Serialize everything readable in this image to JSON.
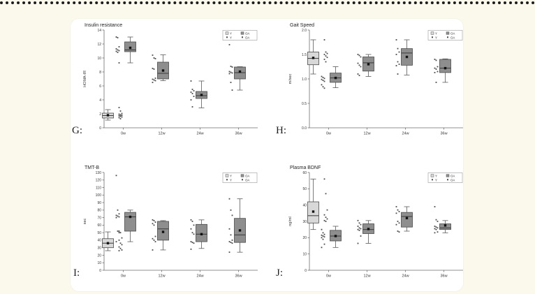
{
  "page": {
    "background": "#fbf8ec",
    "card_background": "#ffffff",
    "top_border": "dotted"
  },
  "colors": {
    "y_box_fill": "#d8d8d8",
    "oa_box_fill": "#8e8e8e",
    "marker": "#4a4a4a",
    "mean": "#111111",
    "axis": "#6e6e6e",
    "text": "#333333"
  },
  "chart_data": [
    {
      "id": "G",
      "label": "G:",
      "type": "boxplot",
      "title": "Insulin resistance",
      "ylabel": "HOMA-IR",
      "ylim": [
        0,
        14
      ],
      "yticks": [
        "0",
        "2",
        "4",
        "6",
        "8",
        "10",
        "12",
        "14"
      ],
      "categories": [
        "0w",
        "12w",
        "24w",
        "36w"
      ],
      "legend": {
        "box_items": [
          "Y",
          "OA"
        ],
        "point_items": [
          "Y",
          "OA"
        ]
      },
      "series": [
        {
          "name": "Y",
          "fill": "#d8d8d8",
          "boxes": [
            {
              "category": "0w",
              "low": 1.1,
              "q1": 1.4,
              "median": 1.75,
              "q3": 2.1,
              "high": 2.6,
              "mean": 1.8,
              "points": [
                2.9,
                2.4,
                2.05,
                1.95,
                1.85,
                1.8,
                1.72,
                1.65,
                1.55,
                1.45,
                1.3
              ]
            }
          ]
        },
        {
          "name": "OA",
          "fill": "#8e8e8e",
          "boxes": [
            {
              "category": "0w",
              "low": 9.3,
              "q1": 10.9,
              "median": 11.15,
              "q3": 12.3,
              "high": 13.0,
              "mean": 11.45,
              "points": [
                13.0,
                12.9,
                11.6,
                11.3,
                11.15,
                11.05,
                10.95,
                10.8,
                9.3
              ]
            },
            {
              "category": "12w",
              "low": 6.75,
              "q1": 7.0,
              "median": 7.8,
              "q3": 9.4,
              "high": 10.45,
              "mean": 8.2,
              "points": [
                10.4,
                10.0,
                9.9,
                8.5,
                8.4,
                7.1,
                6.95,
                6.85,
                6.75,
                6.5
              ]
            },
            {
              "category": "24w",
              "low": 2.85,
              "q1": 4.2,
              "median": 4.6,
              "q3": 5.2,
              "high": 6.7,
              "mean": 4.7,
              "points": [
                6.7,
                5.5,
                5.3,
                5.1,
                4.9,
                4.5,
                4.0,
                3.0
              ]
            },
            {
              "category": "36w",
              "low": 5.4,
              "q1": 7.0,
              "median": 7.9,
              "q3": 8.7,
              "high": 8.75,
              "mean": 8.05,
              "points": [
                11.9,
                8.8,
                8.7,
                8.05,
                7.95,
                7.85,
                7.75,
                6.5,
                5.4
              ]
            }
          ]
        }
      ]
    },
    {
      "id": "H",
      "label": "H:",
      "type": "boxplot",
      "title": "Gait Speed",
      "ylabel": "m/sec",
      "ylim": [
        0,
        2.0
      ],
      "yticks": [
        "0.0",
        "0.5",
        "1.0",
        "1.5",
        "2.0"
      ],
      "categories": [
        "0w",
        "12w",
        "24w",
        "36w"
      ],
      "legend": {
        "box_items": [
          "Y",
          "OA"
        ],
        "point_items": [
          "Y",
          "OA"
        ]
      },
      "series": [
        {
          "name": "Y",
          "fill": "#d8d8d8",
          "boxes": [
            {
              "category": "0w",
              "low": 1.1,
              "q1": 1.29,
              "median": 1.42,
              "q3": 1.55,
              "high": 1.8,
              "mean": 1.43,
              "points": [
                1.8,
                1.55,
                1.52,
                1.5,
                1.47,
                1.44,
                1.4,
                1.35
              ]
            }
          ]
        },
        {
          "name": "OA",
          "fill": "#8e8e8e",
          "boxes": [
            {
              "category": "0w",
              "low": 0.82,
              "q1": 0.93,
              "median": 1.02,
              "q3": 1.12,
              "high": 1.25,
              "mean": 1.02,
              "points": [
                1.05,
                1.03,
                1.01,
                0.99,
                0.97,
                0.95,
                0.88,
                0.84,
                0.81
              ]
            },
            {
              "category": "12w",
              "low": 1.05,
              "q1": 1.16,
              "median": 1.33,
              "q3": 1.45,
              "high": 1.5,
              "mean": 1.3,
              "points": [
                1.5,
                1.48,
                1.45,
                1.32,
                1.28,
                1.25,
                1.1,
                1.07
              ]
            },
            {
              "category": "24w",
              "low": 1.08,
              "q1": 1.28,
              "median": 1.53,
              "q3": 1.62,
              "high": 1.8,
              "mean": 1.45,
              "points": [
                1.8,
                1.62,
                1.55,
                1.5,
                1.35,
                1.3,
                1.27,
                1.1
              ]
            },
            {
              "category": "36w",
              "low": 0.93,
              "q1": 1.13,
              "median": 1.22,
              "q3": 1.4,
              "high": 1.41,
              "mean": 1.22,
              "points": [
                1.4,
                1.38,
                1.25,
                1.22,
                1.2,
                1.15,
                1.13,
                0.93
              ]
            }
          ]
        }
      ]
    },
    {
      "id": "I",
      "label": "I:",
      "type": "boxplot",
      "title": "TMT-B",
      "ylabel": "sec",
      "ylim": [
        0,
        130
      ],
      "yticks": [
        "0",
        "10",
        "20",
        "30",
        "40",
        "50",
        "60",
        "70",
        "80",
        "90",
        "100",
        "110",
        "120",
        "130"
      ],
      "categories": [
        "0w",
        "12w",
        "24w",
        "36w"
      ],
      "legend": {
        "box_items": [
          "Y",
          "OA"
        ],
        "point_items": [
          "Y",
          "OA"
        ]
      },
      "series": [
        {
          "name": "Y",
          "fill": "#d8d8d8",
          "boxes": [
            {
              "category": "0w",
              "low": 26,
              "q1": 30,
              "median": 36,
              "q3": 42,
              "high": 51,
              "mean": 36,
              "points": [
                52,
                50,
                43,
                40,
                36,
                34,
                31,
                29,
                27,
                26
              ]
            }
          ]
        },
        {
          "name": "OA",
          "fill": "#8e8e8e",
          "boxes": [
            {
              "category": "0w",
              "low": 38,
              "q1": 52,
              "median": 71,
              "q3": 77,
              "high": 80,
              "mean": 71,
              "points": [
                126,
                80,
                75,
                73,
                72,
                71,
                70,
                52,
                50,
                38
              ]
            },
            {
              "category": "12w",
              "low": 27,
              "q1": 40,
              "median": 55,
              "q3": 65,
              "high": 66,
              "mean": 51,
              "points": [
                67,
                66,
                64,
                62,
                60,
                45,
                42,
                40,
                38,
                27
              ]
            },
            {
              "category": "24w",
              "low": 29,
              "q1": 38,
              "median": 48,
              "q3": 61,
              "high": 67,
              "mean": 48,
              "points": [
                67,
                65,
                60,
                55,
                50,
                48,
                38,
                37,
                36,
                28
              ]
            },
            {
              "category": "36w",
              "low": 24,
              "q1": 37,
              "median": 47,
              "q3": 69,
              "high": 95,
              "mean": 53,
              "points": [
                95,
                80,
                73,
                55,
                47,
                40,
                38,
                37,
                36,
                24
              ]
            }
          ]
        }
      ]
    },
    {
      "id": "J",
      "label": "J:",
      "type": "boxplot",
      "title": "Plasma BDNF",
      "ylabel": "ng/ml",
      "ylim": [
        0,
        60
      ],
      "yticks": [
        "0",
        "10",
        "20",
        "30",
        "40",
        "50",
        "60"
      ],
      "categories": [
        "0w",
        "12w",
        "24w",
        "36w"
      ],
      "legend": {
        "box_items": [
          "Y",
          "OA"
        ],
        "point_items": [
          "Y",
          "OA"
        ]
      },
      "series": [
        {
          "name": "Y",
          "fill": "#d8d8d8",
          "boxes": [
            {
              "category": "0w",
              "low": 25,
              "q1": 29,
              "median": 33.5,
              "q3": 42,
              "high": 56,
              "mean": 36,
              "points": [
                56,
                47,
                37,
                34,
                32.5,
                31.5,
                30.5,
                30
              ]
            }
          ]
        },
        {
          "name": "OA",
          "fill": "#8e8e8e",
          "boxes": [
            {
              "category": "0w",
              "low": 14,
              "q1": 18,
              "median": 21,
              "q3": 24.5,
              "high": 27,
              "mean": 21,
              "points": [
                25,
                23,
                22,
                21.5,
                21,
                20.5,
                20,
                19,
                16,
                14
              ]
            },
            {
              "category": "12w",
              "low": 16.5,
              "q1": 22.5,
              "median": 25,
              "q3": 28.5,
              "high": 30.5,
              "mean": 25.3,
              "points": [
                30.5,
                29,
                28,
                27,
                26,
                25.5,
                25,
                24.5,
                21,
                16.5
              ]
            },
            {
              "category": "24w",
              "low": 24,
              "q1": 26.5,
              "median": 33,
              "q3": 35.5,
              "high": 39,
              "mean": 32,
              "points": [
                39,
                37,
                36,
                35,
                30,
                29,
                28,
                24,
                23.5
              ]
            },
            {
              "category": "36w",
              "low": 23,
              "q1": 25,
              "median": 26,
              "q3": 28.5,
              "high": 30.5,
              "mean": 27.5,
              "points": [
                39,
                31,
                30,
                27,
                26.5,
                26,
                25.5,
                25,
                23.5,
                23
              ]
            }
          ]
        }
      ]
    }
  ]
}
